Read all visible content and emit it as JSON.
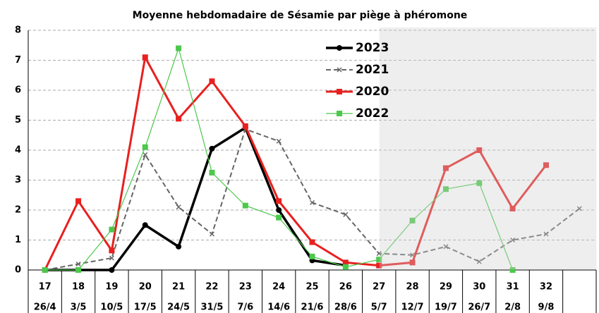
{
  "chart_data": {
    "type": "line",
    "title": "Moyenne hebdomadaire de Sésamie par piège à phéromone",
    "categories": [
      "17",
      "18",
      "19",
      "20",
      "21",
      "22",
      "23",
      "24",
      "25",
      "26",
      "27",
      "28",
      "29",
      "30",
      "31",
      "32",
      null
    ],
    "dates": [
      "26/4",
      "3/5",
      "10/5",
      "17/5",
      "24/5",
      "31/5",
      "7/6",
      "14/6",
      "21/6",
      "28/6",
      "5/7",
      "12/7",
      "19/7",
      "26/7",
      "2/8",
      "9/8",
      null
    ],
    "ylim": [
      0,
      8
    ],
    "yticks": [
      0,
      1,
      2,
      3,
      4,
      5,
      6,
      7,
      8
    ],
    "grid": true,
    "series": [
      {
        "name": "2023",
        "color": "#000000",
        "values": [
          0,
          0,
          0,
          1.5,
          0.78,
          4.05,
          4.75,
          2.0,
          0.32,
          0.15,
          null,
          null,
          null,
          null,
          null,
          null,
          null
        ]
      },
      {
        "name": "2021",
        "color": "#666666",
        "values": [
          0,
          0.2,
          0.4,
          3.85,
          2.1,
          1.2,
          4.7,
          4.3,
          2.25,
          1.85,
          0.55,
          0.5,
          0.78,
          0.28,
          1.0,
          1.2,
          2.05
        ]
      },
      {
        "name": "2020",
        "color": "#e8201f",
        "values": [
          0,
          2.3,
          0.65,
          7.1,
          5.05,
          6.3,
          4.8,
          2.3,
          0.93,
          0.25,
          0.15,
          0.25,
          3.4,
          4.0,
          2.05,
          3.5,
          null
        ]
      },
      {
        "name": "2022",
        "color": "#4cc84c",
        "values": [
          0,
          0,
          1.35,
          4.1,
          7.4,
          3.25,
          2.15,
          1.75,
          0.45,
          0.1,
          0.35,
          1.65,
          2.7,
          2.9,
          0,
          null,
          null
        ]
      }
    ]
  }
}
